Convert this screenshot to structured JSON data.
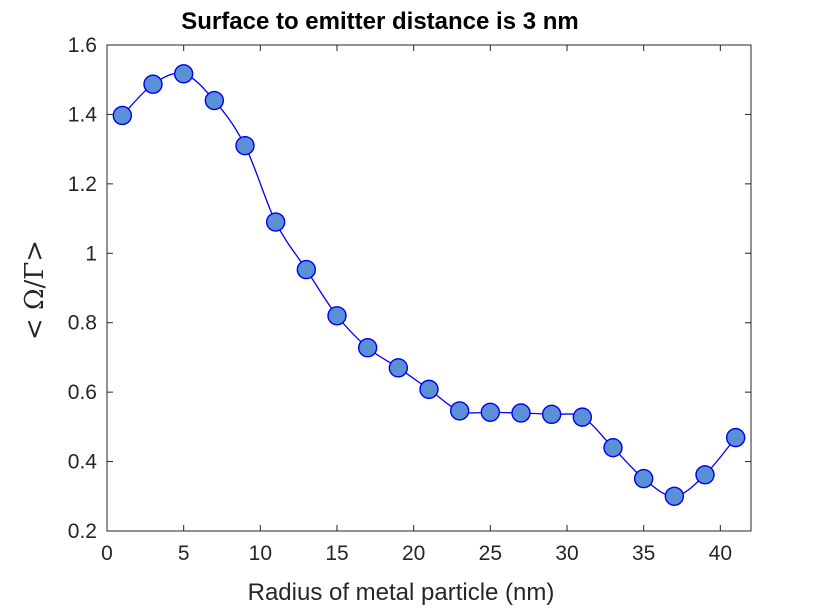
{
  "chart_data": {
    "type": "line",
    "title": "Surface to emitter distance is 3 nm",
    "xlabel": "Radius of metal particle (nm)",
    "ylabel": "< Ω/Γ>",
    "xlim": [
      0,
      42
    ],
    "ylim": [
      0.2,
      1.6
    ],
    "xticks": [
      0,
      5,
      10,
      15,
      20,
      25,
      30,
      35,
      40
    ],
    "yticks": [
      0.2,
      0.4,
      0.6,
      0.8,
      1,
      1.2,
      1.4,
      1.6
    ],
    "xtick_labels": [
      "0",
      "5",
      "10",
      "15",
      "20",
      "25",
      "30",
      "35",
      "40"
    ],
    "ytick_labels": [
      "0.2",
      "0.4",
      "0.6",
      "0.8",
      "1",
      "1.2",
      "1.4",
      "1.6"
    ],
    "grid": false,
    "series": [
      {
        "x": [
          1,
          3,
          5,
          7,
          9,
          11,
          13,
          15,
          17,
          19,
          21,
          23,
          25,
          27,
          29,
          31,
          33,
          35,
          37,
          39,
          41
        ],
        "y": [
          1.397,
          1.487,
          1.517,
          1.44,
          1.31,
          1.09,
          0.953,
          0.82,
          0.728,
          0.67,
          0.608,
          0.546,
          0.542,
          0.54,
          0.536,
          0.528,
          0.44,
          0.351,
          0.3,
          0.362,
          0.469
        ],
        "marker": "circle",
        "line_color": "#0000ff",
        "marker_face_color": "#5b8fd6",
        "marker_edge_color": "#0000ee"
      }
    ]
  }
}
